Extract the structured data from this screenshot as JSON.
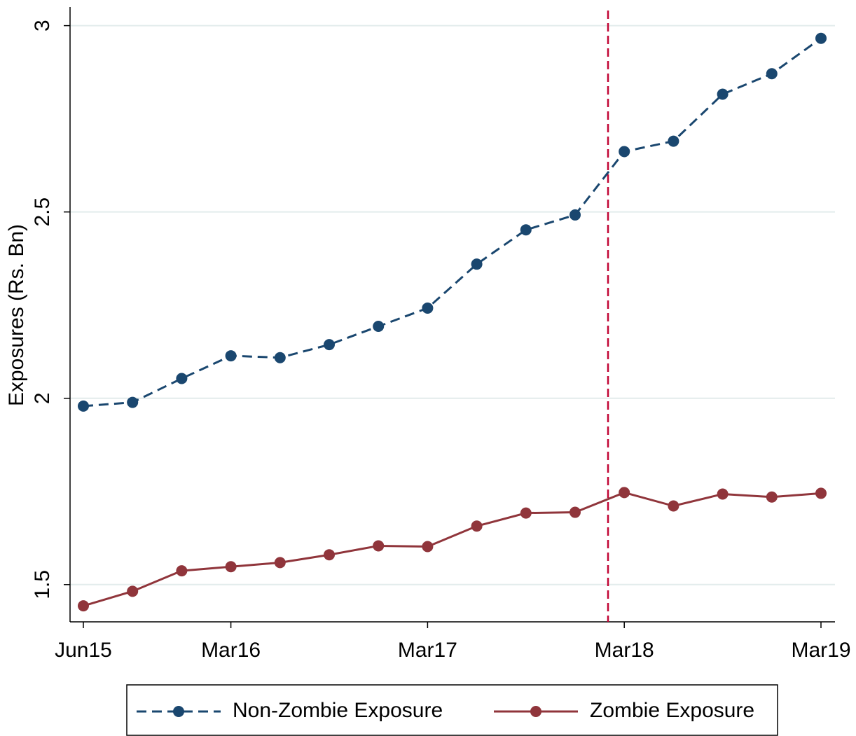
{
  "chart_data": {
    "type": "line",
    "y_label": "Exposures (Rs. Bn)",
    "categories": [
      "Jun15",
      null,
      null,
      "Mar16",
      null,
      null,
      null,
      "Mar17",
      null,
      null,
      null,
      "Mar18",
      null,
      null,
      null,
      "Mar19"
    ],
    "series": [
      {
        "name": "Non-Zombie Exposure",
        "color": "#1a476f",
        "dash": true,
        "values": [
          1.979,
          1.989,
          2.053,
          2.114,
          2.109,
          2.144,
          2.193,
          2.242,
          2.36,
          2.452,
          2.492,
          2.662,
          2.69,
          2.816,
          2.871,
          2.966
        ]
      },
      {
        "name": "Zombie Exposure",
        "color": "#90353b",
        "dash": false,
        "values": [
          1.443,
          1.482,
          1.537,
          1.548,
          1.559,
          1.58,
          1.604,
          1.602,
          1.657,
          1.692,
          1.694,
          1.747,
          1.711,
          1.743,
          1.735,
          1.745
        ]
      }
    ],
    "ylim": [
      1.4,
      3.05
    ],
    "yticks": [
      1.5,
      2,
      2.5,
      3
    ],
    "grid": true,
    "vline": {
      "x": 10.67,
      "color": "#c10534"
    },
    "legend": "bottom"
  }
}
